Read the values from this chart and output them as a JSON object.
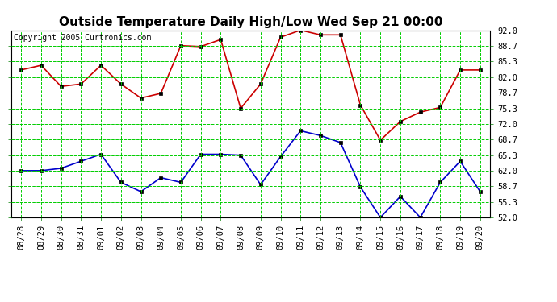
{
  "title": "Outside Temperature Daily High/Low Wed Sep 21 00:00",
  "copyright": "Copyright 2005 Curtronics.com",
  "x_labels": [
    "08/28",
    "08/29",
    "08/30",
    "08/31",
    "09/01",
    "09/02",
    "09/03",
    "09/04",
    "09/05",
    "09/06",
    "09/07",
    "09/08",
    "09/09",
    "09/10",
    "09/11",
    "09/12",
    "09/13",
    "09/14",
    "09/15",
    "09/16",
    "09/17",
    "09/18",
    "09/19",
    "09/20"
  ],
  "high_temps": [
    83.5,
    84.5,
    80.0,
    80.5,
    84.5,
    80.5,
    77.5,
    78.5,
    88.7,
    88.5,
    90.0,
    75.3,
    80.5,
    90.5,
    92.0,
    91.0,
    91.0,
    76.0,
    68.5,
    72.5,
    74.5,
    75.5,
    83.5,
    83.5
  ],
  "low_temps": [
    62.0,
    62.0,
    62.5,
    64.0,
    65.5,
    59.5,
    57.5,
    60.5,
    59.5,
    65.5,
    65.5,
    65.3,
    59.0,
    65.0,
    70.5,
    69.5,
    68.0,
    58.5,
    52.0,
    56.5,
    52.0,
    59.5,
    64.0,
    57.5
  ],
  "high_color": "#cc0000",
  "low_color": "#0000cc",
  "bg_color": "#ffffff",
  "grid_color": "#00cc00",
  "yticks": [
    52.0,
    55.3,
    58.7,
    62.0,
    65.3,
    68.7,
    72.0,
    75.3,
    78.7,
    82.0,
    85.3,
    88.7,
    92.0
  ],
  "ymin": 52.0,
  "ymax": 92.0,
  "title_fontsize": 11,
  "copyright_fontsize": 7,
  "tick_fontsize": 7.5
}
